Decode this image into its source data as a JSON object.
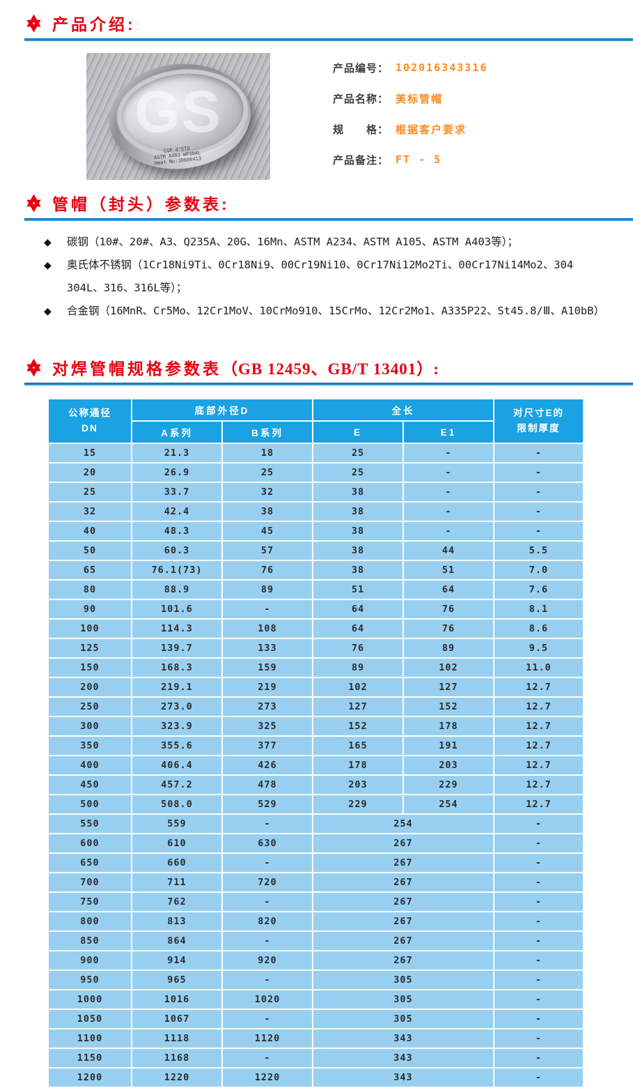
{
  "colors": {
    "title_red": "#e60012",
    "value_orange": "#ff8a1e",
    "rule_dark": "#1565a8",
    "rule_light": "#2e96d6",
    "header_bg": "#1aa2e2",
    "row_bg": "#98cff0",
    "header_text": "#ffffff",
    "cell_text": "#2b2b2b"
  },
  "sections": {
    "intro": {
      "title": "产品介绍:"
    },
    "params": {
      "title": "管帽（封头）参数表:",
      "bullets": [
        "碳钢（10#、20#、A3、Q235A、20G、16Mn、ASTM A234、ASTM A105、ASTM A403等）；",
        "奥氏体不锈钢（1Cr18Ni9Ti、0Cr18Ni9、00Cr19Ni10、0Cr17Ni12Mo2Ti、00Cr17Ni14Mo2、304 304L、316、316L等）；",
        "合金钢（16MnR、Cr5Mo、12Cr1MoV、10CrMo910、15CrMo、12Cr2Mo1、A335P22、St45.8/Ⅲ、A10bB）"
      ]
    },
    "specs": {
      "title_cn": "对焊管帽规格参数表",
      "title_latin": "（GB 12459、GB/T 13401）:"
    }
  },
  "product": {
    "photo": {
      "watermark": "GS",
      "stamp_lines": [
        "CGP 4\"STD",
        "ASTM A403 WP304L",
        "Heat No:JD606413"
      ]
    },
    "fields": [
      {
        "label": "产品编号：",
        "value": "102016343316"
      },
      {
        "label": "产品名称：",
        "value": "美标管帽"
      },
      {
        "label": "规　　格：",
        "value": "根据客户要求"
      },
      {
        "label": "产品备注：",
        "value": "FT - 5"
      }
    ]
  },
  "table": {
    "header": {
      "col_dn_top": "公称通径",
      "col_dn_bottom": "DN",
      "group_d": "底部外径D",
      "col_a": "A系列",
      "col_b": "B系列",
      "group_len": "全长",
      "col_e": "E",
      "col_e1": "E1",
      "col_limit_top": "对尺寸E的",
      "col_limit_bottom": "限制厚度"
    },
    "rows": [
      {
        "dn": "15",
        "a": "21.3",
        "b": "18",
        "e": "25",
        "e1": "-",
        "t": "-"
      },
      {
        "dn": "20",
        "a": "26.9",
        "b": "25",
        "e": "25",
        "e1": "-",
        "t": "-"
      },
      {
        "dn": "25",
        "a": "33.7",
        "b": "32",
        "e": "38",
        "e1": "-",
        "t": "-"
      },
      {
        "dn": "32",
        "a": "42.4",
        "b": "38",
        "e": "38",
        "e1": "-",
        "t": "-"
      },
      {
        "dn": "40",
        "a": "48.3",
        "b": "45",
        "e": "38",
        "e1": "-",
        "t": "-"
      },
      {
        "dn": "50",
        "a": "60.3",
        "b": "57",
        "e": "38",
        "e1": "44",
        "t": "5.5"
      },
      {
        "dn": "65",
        "a": "76.1(73)",
        "b": "76",
        "e": "38",
        "e1": "51",
        "t": "7.0"
      },
      {
        "dn": "80",
        "a": "88.9",
        "b": "89",
        "e": "51",
        "e1": "64",
        "t": "7.6"
      },
      {
        "dn": "90",
        "a": "101.6",
        "b": "-",
        "e": "64",
        "e1": "76",
        "t": "8.1"
      },
      {
        "dn": "100",
        "a": "114.3",
        "b": "108",
        "e": "64",
        "e1": "76",
        "t": "8.6"
      },
      {
        "dn": "125",
        "a": "139.7",
        "b": "133",
        "e": "76",
        "e1": "89",
        "t": "9.5"
      },
      {
        "dn": "150",
        "a": "168.3",
        "b": "159",
        "e": "89",
        "e1": "102",
        "t": "11.0"
      },
      {
        "dn": "200",
        "a": "219.1",
        "b": "219",
        "e": "102",
        "e1": "127",
        "t": "12.7"
      },
      {
        "dn": "250",
        "a": "273.0",
        "b": "273",
        "e": "127",
        "e1": "152",
        "t": "12.7"
      },
      {
        "dn": "300",
        "a": "323.9",
        "b": "325",
        "e": "152",
        "e1": "178",
        "t": "12.7"
      },
      {
        "dn": "350",
        "a": "355.6",
        "b": "377",
        "e": "165",
        "e1": "191",
        "t": "12.7"
      },
      {
        "dn": "400",
        "a": "406.4",
        "b": "426",
        "e": "178",
        "e1": "203",
        "t": "12.7"
      },
      {
        "dn": "450",
        "a": "457.2",
        "b": "478",
        "e": "203",
        "e1": "229",
        "t": "12.7"
      },
      {
        "dn": "500",
        "a": "508.0",
        "b": "529",
        "e": "229",
        "e1": "254",
        "t": "12.7"
      },
      {
        "dn": "550",
        "a": "559",
        "b": "-",
        "e": "254",
        "merged": true,
        "t": "-"
      },
      {
        "dn": "600",
        "a": "610",
        "b": "630",
        "e": "267",
        "merged": true,
        "t": "-"
      },
      {
        "dn": "650",
        "a": "660",
        "b": "-",
        "e": "267",
        "merged": true,
        "t": "-"
      },
      {
        "dn": "700",
        "a": "711",
        "b": "720",
        "e": "267",
        "merged": true,
        "t": "-"
      },
      {
        "dn": "750",
        "a": "762",
        "b": "-",
        "e": "267",
        "merged": true,
        "t": "-"
      },
      {
        "dn": "800",
        "a": "813",
        "b": "820",
        "e": "267",
        "merged": true,
        "t": "-"
      },
      {
        "dn": "850",
        "a": "864",
        "b": "-",
        "e": "267",
        "merged": true,
        "t": "-"
      },
      {
        "dn": "900",
        "a": "914",
        "b": "920",
        "e": "267",
        "merged": true,
        "t": "-"
      },
      {
        "dn": "950",
        "a": "965",
        "b": "-",
        "e": "305",
        "merged": true,
        "t": "-"
      },
      {
        "dn": "1000",
        "a": "1016",
        "b": "1020",
        "e": "305",
        "merged": true,
        "t": "-"
      },
      {
        "dn": "1050",
        "a": "1067",
        "b": "-",
        "e": "305",
        "merged": true,
        "t": "-"
      },
      {
        "dn": "1100",
        "a": "1118",
        "b": "1120",
        "e": "343",
        "merged": true,
        "t": "-"
      },
      {
        "dn": "1150",
        "a": "1168",
        "b": "-",
        "e": "343",
        "merged": true,
        "t": "-"
      },
      {
        "dn": "1200",
        "a": "1220",
        "b": "1220",
        "e": "343",
        "merged": true,
        "t": "-"
      }
    ]
  }
}
